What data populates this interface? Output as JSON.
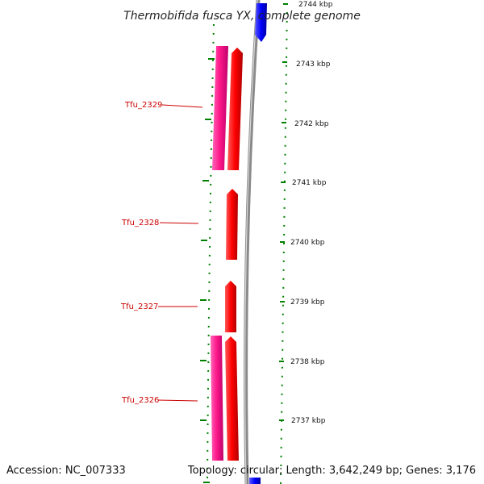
{
  "title": "Thermobifida fusca YX, complete genome",
  "footer": {
    "accession": "Accession: NC_007333",
    "summary": "Topology: circular; Length: 3,642,249 bp; Genes: 3,176"
  },
  "kbp_ticks": [
    "2744 kbp",
    "2743 kbp",
    "2742 kbp",
    "2741 kbp",
    "2740 kbp",
    "2739 kbp",
    "2738 kbp",
    "2737 kbp"
  ],
  "gene_labels": [
    "Tfu_2329",
    "Tfu_2328",
    "Tfu_2327",
    "Tfu_2326"
  ],
  "colors": {
    "cds_pink": "#ff1a8c",
    "gene_red": "#ff0000",
    "reverse_blue": "#0000ff",
    "label_red": "#cc0000",
    "tick_green": "#008000",
    "backbone_gray": "#888888"
  }
}
